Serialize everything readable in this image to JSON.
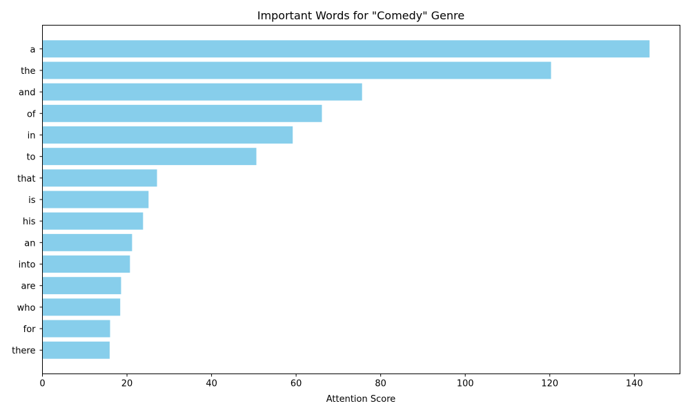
{
  "chart_data": {
    "type": "bar",
    "orientation": "horizontal",
    "title": "Important Words for \"Comedy\" Genre",
    "xlabel": "Attention Score",
    "ylabel": "",
    "xlim": [
      0,
      150.8
    ],
    "xticks": [
      0,
      20,
      40,
      60,
      80,
      100,
      120,
      140
    ],
    "grid": false,
    "bar_color": "#87ceeb",
    "categories": [
      "a",
      "the",
      "and",
      "of",
      "in",
      "to",
      "that",
      "is",
      "his",
      "an",
      "into",
      "are",
      "who",
      "for",
      "there"
    ],
    "values": [
      143.6,
      120.3,
      75.6,
      66.1,
      59.2,
      50.6,
      27.1,
      25.1,
      23.8,
      21.2,
      20.7,
      18.6,
      18.4,
      16.0,
      15.9
    ]
  }
}
